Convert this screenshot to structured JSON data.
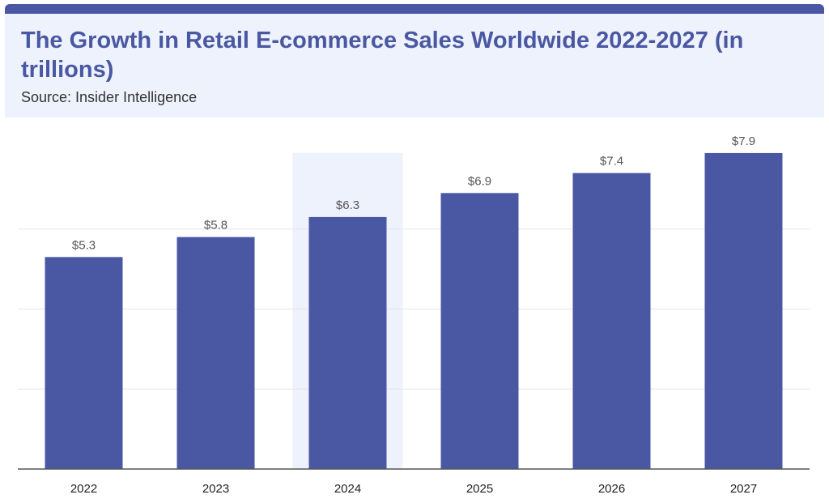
{
  "header": {
    "title": "The Growth in Retail E-commerce Sales Worldwide 2022-2027 (in trillions)",
    "subtitle": "Source: Insider Intelligence"
  },
  "colors": {
    "bar": "#4a58a3",
    "highlight": "#eef2fc",
    "grid": "#e5e5e5",
    "axis": "#555555"
  },
  "chart_data": {
    "type": "bar",
    "categories": [
      "2022",
      "2023",
      "2024",
      "2025",
      "2026",
      "2027"
    ],
    "values": [
      5.3,
      5.8,
      6.3,
      6.9,
      7.4,
      7.9
    ],
    "data_labels": [
      "$5.3",
      "$5.8",
      "$6.3",
      "$6.9",
      "$7.4",
      "$7.9"
    ],
    "highlighted_category": "2024",
    "title": "The Growth in Retail E-commerce Sales Worldwide 2022-2027 (in trillions)",
    "xlabel": "",
    "ylabel": "",
    "ylim": [
      0,
      8
    ],
    "grid": true,
    "legend": "none"
  }
}
